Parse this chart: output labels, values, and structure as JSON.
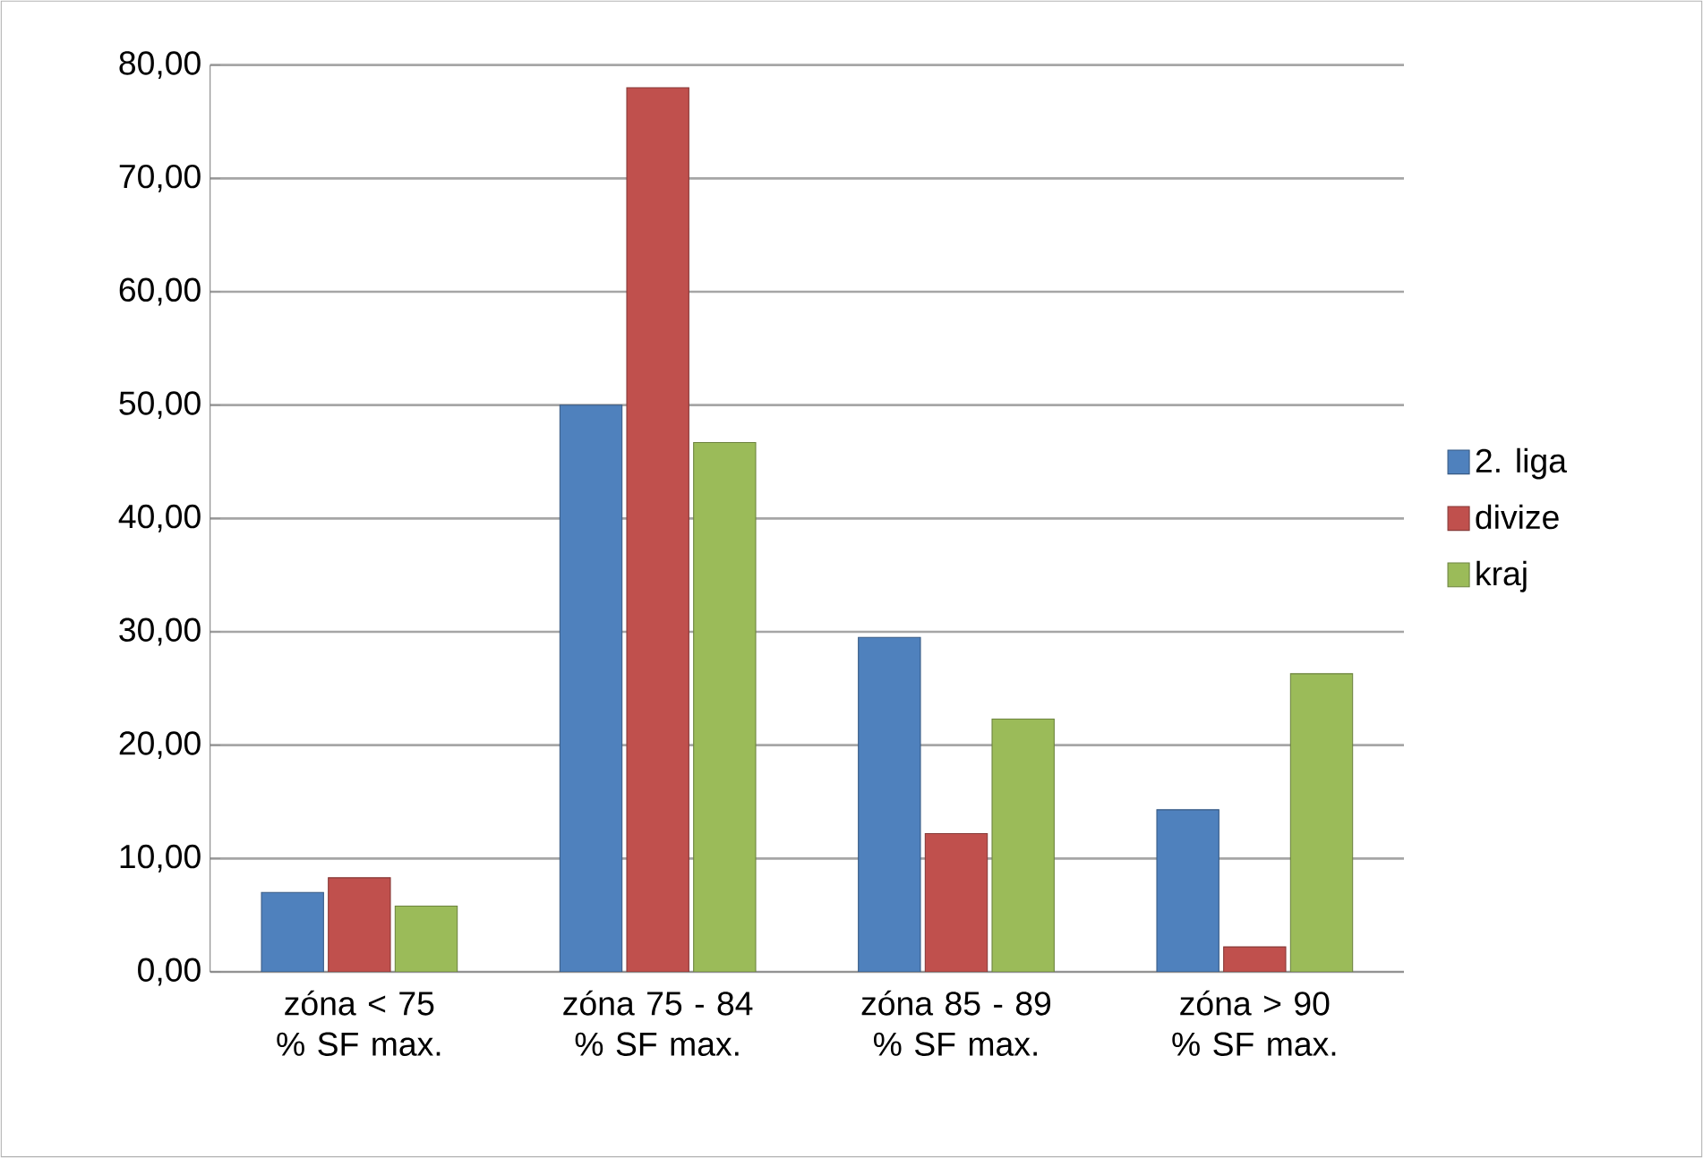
{
  "chart_data": {
    "type": "bar",
    "categories": [
      "zóna < 75 % SF max.",
      "zóna 75 - 84 % SF max.",
      "zóna 85 - 89 % SF max.",
      "zóna > 90 % SF max."
    ],
    "series": [
      {
        "name": "2. liga",
        "color": "#4f81bd",
        "values": [
          7.0,
          50.0,
          29.5,
          14.3
        ]
      },
      {
        "name": "divize",
        "color": "#c0504d",
        "values": [
          8.3,
          78.0,
          12.2,
          2.2
        ]
      },
      {
        "name": "kraj",
        "color": "#9bbb59",
        "values": [
          5.8,
          46.7,
          22.3,
          26.3
        ]
      }
    ],
    "ylim": [
      0,
      80
    ],
    "yticks": [
      {
        "value": 0,
        "label": "0,00"
      },
      {
        "value": 10,
        "label": "10,00"
      },
      {
        "value": 20,
        "label": "20,00"
      },
      {
        "value": 30,
        "label": "30,00"
      },
      {
        "value": 40,
        "label": "40,00"
      },
      {
        "value": 50,
        "label": "50,00"
      },
      {
        "value": 60,
        "label": "60,00"
      },
      {
        "value": 70,
        "label": "70,00"
      },
      {
        "value": 80,
        "label": "80,00"
      }
    ],
    "grid": "y",
    "legend": "right"
  }
}
